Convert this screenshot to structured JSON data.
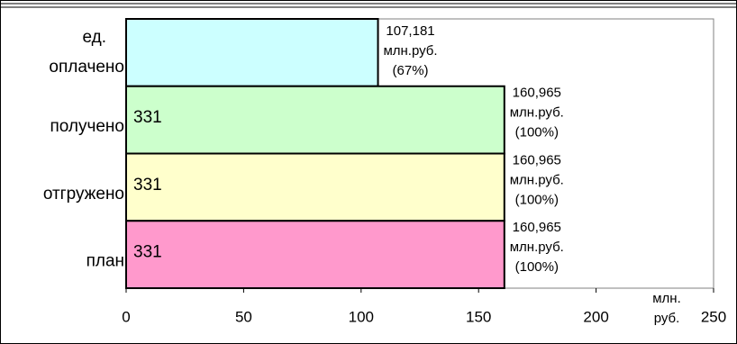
{
  "chart_data": {
    "type": "hbar",
    "categories": [
      "ед. оплачено",
      "получено",
      "отгружено",
      "план"
    ],
    "values": [
      107.181,
      160.965,
      160.965,
      160.965
    ],
    "value_labels": [
      "107,181",
      "160,965",
      "160,965",
      "160,965"
    ],
    "value_unit": "млн.руб.",
    "percent_labels": [
      "(67%)",
      "(100%)",
      "(100%)",
      "(100%)"
    ],
    "inner_labels": [
      null,
      "331",
      "331",
      "331"
    ],
    "colors": [
      "#ccffff",
      "#ccffcc",
      "#ffffcc",
      "#ff99cc"
    ],
    "xlabel": "млн. руб.",
    "xlim": [
      0,
      250
    ],
    "xticks": [
      0,
      50,
      100,
      150,
      200,
      250
    ]
  }
}
